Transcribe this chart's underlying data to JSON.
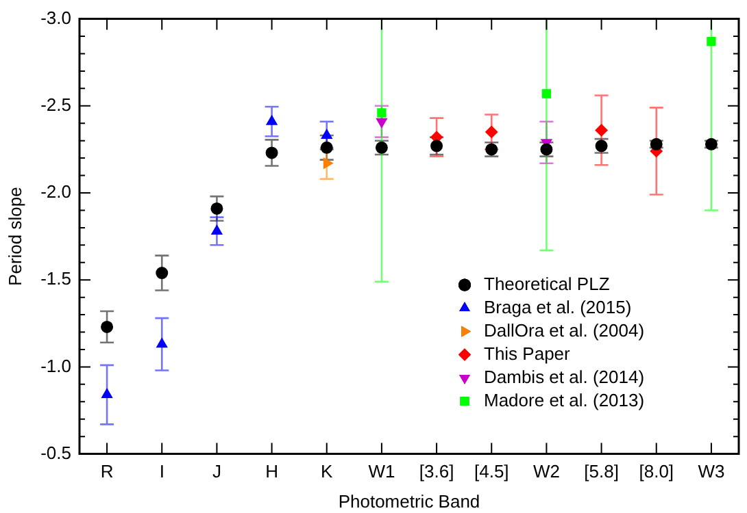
{
  "chart_data": {
    "type": "scatter",
    "xlabel": "Photometric Band",
    "ylabel": "Period slope",
    "categories": [
      "R",
      "I",
      "J",
      "H",
      "K",
      "W1",
      "[3.6]",
      "[4.5]",
      "W2",
      "[5.8]",
      "[8.0]",
      "W3"
    ],
    "ylim": [
      -0.5,
      -3.0
    ],
    "yticks": [
      {
        "value": -3.0,
        "label": "-3.0"
      },
      {
        "value": -2.9,
        "label": null
      },
      {
        "value": -2.8,
        "label": null
      },
      {
        "value": -2.7,
        "label": null
      },
      {
        "value": -2.6,
        "label": null
      },
      {
        "value": -2.5,
        "label": "-2.5"
      },
      {
        "value": -2.4,
        "label": null
      },
      {
        "value": -2.3,
        "label": null
      },
      {
        "value": -2.2,
        "label": null
      },
      {
        "value": -2.1,
        "label": null
      },
      {
        "value": -2.0,
        "label": "-2.0"
      },
      {
        "value": -1.9,
        "label": null
      },
      {
        "value": -1.8,
        "label": null
      },
      {
        "value": -1.7,
        "label": null
      },
      {
        "value": -1.6,
        "label": null
      },
      {
        "value": -1.5,
        "label": "-1.5"
      },
      {
        "value": -1.4,
        "label": null
      },
      {
        "value": -1.3,
        "label": null
      },
      {
        "value": -1.2,
        "label": null
      },
      {
        "value": -1.1,
        "label": null
      },
      {
        "value": -1.0,
        "label": "-1.0"
      },
      {
        "value": -0.9,
        "label": null
      },
      {
        "value": -0.8,
        "label": null
      },
      {
        "value": -0.7,
        "label": null
      },
      {
        "value": -0.6,
        "label": null
      },
      {
        "value": -0.5,
        "label": "-0.5"
      }
    ],
    "grid": false,
    "legend": "bottom right",
    "series": [
      {
        "name": "Theoretical PLZ",
        "color": "#000000",
        "marker": "circle",
        "values": [
          -1.23,
          -1.54,
          -1.91,
          -2.23,
          -2.26,
          -2.26,
          -2.27,
          -2.25,
          -2.25,
          -2.27,
          -2.28,
          -2.28
        ],
        "errors": [
          0.09,
          0.1,
          0.07,
          0.075,
          0.07,
          0.04,
          0.05,
          0.04,
          0.04,
          0.04,
          0.02,
          0.02
        ]
      },
      {
        "name": "Braga et al. (2015)",
        "color": "#0000ff",
        "marker": "triangle",
        "values": [
          -0.84,
          -1.13,
          -1.78,
          -2.41,
          -2.33,
          null,
          null,
          null,
          null,
          null,
          null,
          null
        ],
        "errors": [
          0.17,
          0.15,
          0.08,
          0.085,
          0.08,
          null,
          null,
          null,
          null,
          null,
          null,
          null
        ]
      },
      {
        "name": "DallOra et al. (2004)",
        "color": "#ff8000",
        "marker": "triangle-right",
        "values": [
          null,
          null,
          null,
          null,
          -2.17,
          null,
          null,
          null,
          null,
          null,
          null,
          null
        ],
        "errors": [
          null,
          null,
          null,
          null,
          0.09,
          null,
          null,
          null,
          null,
          null,
          null,
          null
        ]
      },
      {
        "name": "This Paper",
        "color": "#ff0000",
        "marker": "diamond",
        "values": [
          null,
          null,
          null,
          null,
          null,
          null,
          -2.32,
          -2.35,
          null,
          -2.36,
          -2.24,
          null
        ],
        "errors": [
          null,
          null,
          null,
          null,
          null,
          null,
          0.11,
          0.1,
          null,
          0.2,
          0.25,
          null
        ]
      },
      {
        "name": "Dambis et al. (2014)",
        "color": "#cc00cc",
        "marker": "triangle-down",
        "values": [
          null,
          null,
          null,
          null,
          null,
          -2.41,
          null,
          null,
          -2.29,
          null,
          null,
          null
        ],
        "errors": [
          null,
          null,
          null,
          null,
          null,
          0.09,
          null,
          null,
          0.12,
          null,
          null,
          null
        ]
      },
      {
        "name": "Madore et al. (2013)",
        "color": "#00ff00",
        "marker": "square",
        "values": [
          null,
          null,
          null,
          null,
          null,
          -2.46,
          null,
          null,
          -2.57,
          null,
          null,
          -2.87
        ],
        "errors": [
          null,
          null,
          null,
          null,
          null,
          [
            -3.0,
            -1.49
          ],
          null,
          null,
          [
            -3.0,
            -1.67
          ],
          null,
          null,
          [
            -3.0,
            -1.9
          ]
        ]
      }
    ]
  }
}
